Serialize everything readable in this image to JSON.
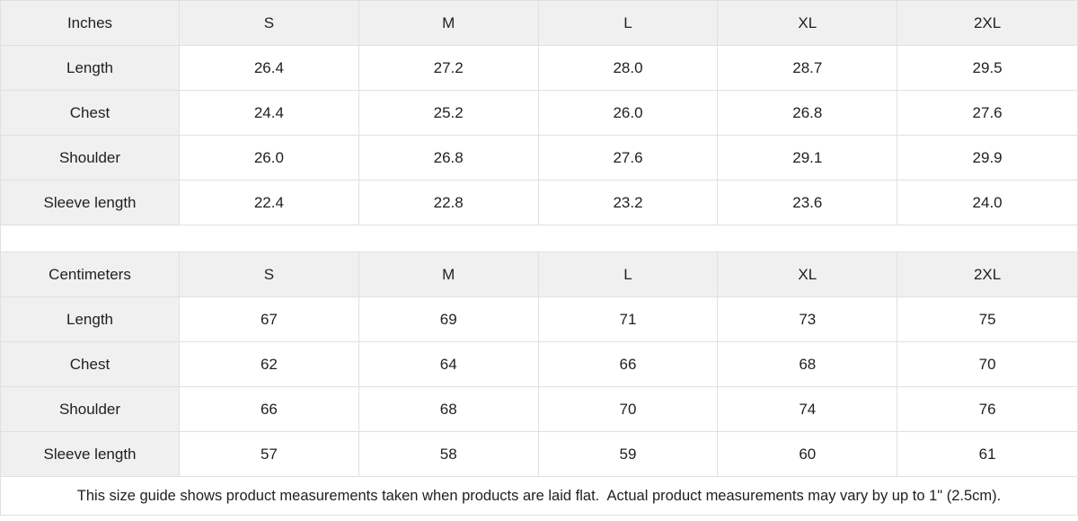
{
  "colors": {
    "header_bg": "#f0f0f0",
    "border": "#e0e0e0",
    "text": "#1f1f1f"
  },
  "tables": [
    {
      "unit_label": "Inches",
      "sizes": [
        "S",
        "M",
        "L",
        "XL",
        "2XL"
      ],
      "rows": [
        {
          "label": "Length",
          "values": [
            "26.4",
            "27.2",
            "28.0",
            "28.7",
            "29.5"
          ]
        },
        {
          "label": "Chest",
          "values": [
            "24.4",
            "25.2",
            "26.0",
            "26.8",
            "27.6"
          ]
        },
        {
          "label": "Shoulder",
          "values": [
            "26.0",
            "26.8",
            "27.6",
            "29.1",
            "29.9"
          ]
        },
        {
          "label": "Sleeve length",
          "values": [
            "22.4",
            "22.8",
            "23.2",
            "23.6",
            "24.0"
          ]
        }
      ]
    },
    {
      "unit_label": "Centimeters",
      "sizes": [
        "S",
        "M",
        "L",
        "XL",
        "2XL"
      ],
      "rows": [
        {
          "label": "Length",
          "values": [
            "67",
            "69",
            "71",
            "73",
            "75"
          ]
        },
        {
          "label": "Chest",
          "values": [
            "62",
            "64",
            "66",
            "68",
            "70"
          ]
        },
        {
          "label": "Shoulder",
          "values": [
            "66",
            "68",
            "70",
            "74",
            "76"
          ]
        },
        {
          "label": "Sleeve length",
          "values": [
            "57",
            "58",
            "59",
            "60",
            "61"
          ]
        }
      ]
    }
  ],
  "footer_note": "This size guide shows product measurements taken when products are laid flat.  Actual product measurements may vary by up to 1\" (2.5cm)."
}
